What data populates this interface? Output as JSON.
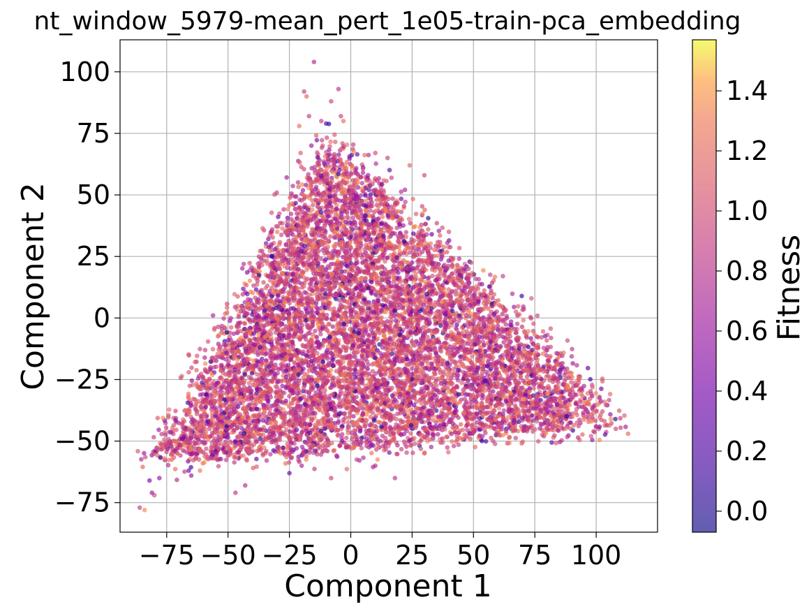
{
  "chart_data": {
    "type": "scatter",
    "title": "nt_window_5979-mean_pert_1e05-train-pca_embedding",
    "xlabel": "Component 1",
    "ylabel": "Component 2",
    "xlim": [
      -94,
      125
    ],
    "ylim": [
      -87,
      113
    ],
    "xticks": [
      -75,
      -50,
      -25,
      0,
      25,
      50,
      75,
      100
    ],
    "yticks": [
      -75,
      -50,
      -25,
      0,
      25,
      50,
      75,
      100
    ],
    "xtick_labels": [
      "−75",
      "−50",
      "−25",
      "0",
      "25",
      "50",
      "75",
      "100"
    ],
    "ytick_labels": [
      "−75",
      "−50",
      "−25",
      "0",
      "25",
      "50",
      "75",
      "100"
    ],
    "grid": true,
    "colormap": "plasma",
    "marker_alpha": 0.65,
    "colorbar": {
      "label": "Fitness",
      "range": [
        -0.07,
        1.57
      ],
      "ticks": [
        0.0,
        0.2,
        0.4,
        0.6,
        0.8,
        1.0,
        1.2,
        1.4
      ],
      "tick_labels": [
        "0.0",
        "0.2",
        "0.4",
        "0.6",
        "0.8",
        "1.0",
        "1.2",
        "1.4"
      ]
    },
    "point_cloud": {
      "shape": "triangular",
      "apex": [
        -8,
        72
      ],
      "left_corner": [
        -80,
        -60
      ],
      "right_corner": [
        108,
        -42
      ],
      "bottom_edge": -52,
      "outliers": [
        [
          -15,
          104
        ],
        [
          -19,
          92
        ],
        [
          -18,
          90
        ],
        [
          -5,
          93
        ],
        [
          -8,
          88
        ],
        [
          -4,
          82
        ],
        [
          -21,
          78
        ],
        [
          -17,
          82
        ],
        [
          -10,
          79
        ],
        [
          -12,
          80
        ],
        [
          -3,
          80
        ],
        [
          -86,
          -77
        ],
        [
          -84,
          -78
        ],
        [
          -80,
          -72
        ],
        [
          -81,
          -71
        ],
        [
          -82,
          -66
        ],
        [
          -78,
          -65
        ],
        [
          -65,
          -64
        ],
        [
          -66,
          -62
        ],
        [
          -47,
          -71
        ],
        [
          -43,
          -68
        ],
        [
          -20,
          -60
        ],
        [
          -25,
          -63
        ],
        [
          -8,
          -65
        ],
        [
          10,
          -60
        ],
        [
          18,
          -65
        ],
        [
          30,
          -55
        ],
        [
          42,
          -52
        ],
        [
          58,
          -50
        ],
        [
          66,
          -46
        ],
        [
          80,
          -42
        ],
        [
          88,
          -40
        ],
        [
          95,
          -40
        ],
        [
          98,
          -42
        ],
        [
          100,
          -44
        ],
        [
          106,
          -41
        ],
        [
          108,
          -45
        ],
        [
          113,
          -47
        ],
        [
          93,
          -36
        ],
        [
          40,
          35
        ],
        [
          62,
          17
        ],
        [
          48,
          20
        ],
        [
          30,
          58
        ],
        [
          24,
          62
        ],
        [
          15,
          65
        ],
        [
          10,
          67
        ]
      ],
      "fitness_distribution": {
        "mean": 0.97,
        "sd": 0.22,
        "min": -0.05,
        "max": 1.35
      }
    }
  }
}
